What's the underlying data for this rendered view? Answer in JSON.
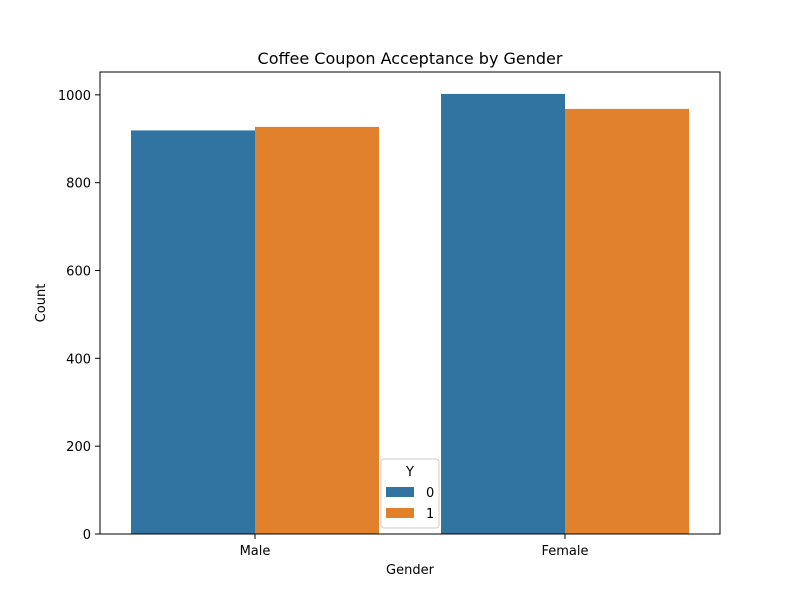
{
  "chart_data": {
    "type": "bar",
    "title": "Coffee Coupon Acceptance by Gender",
    "xlabel": "Gender",
    "ylabel": "Count",
    "categories": [
      "Male",
      "Female"
    ],
    "series": [
      {
        "name": "0",
        "values": [
          919,
          1002
        ],
        "color": "#3274a1"
      },
      {
        "name": "1",
        "values": [
          927,
          968
        ],
        "color": "#e1812c"
      }
    ],
    "ylim": [
      0,
      1052
    ],
    "yticks": [
      0,
      200,
      400,
      600,
      800,
      1000
    ],
    "legend": {
      "title": "Y",
      "placement": "lower-center"
    },
    "grid": false
  }
}
